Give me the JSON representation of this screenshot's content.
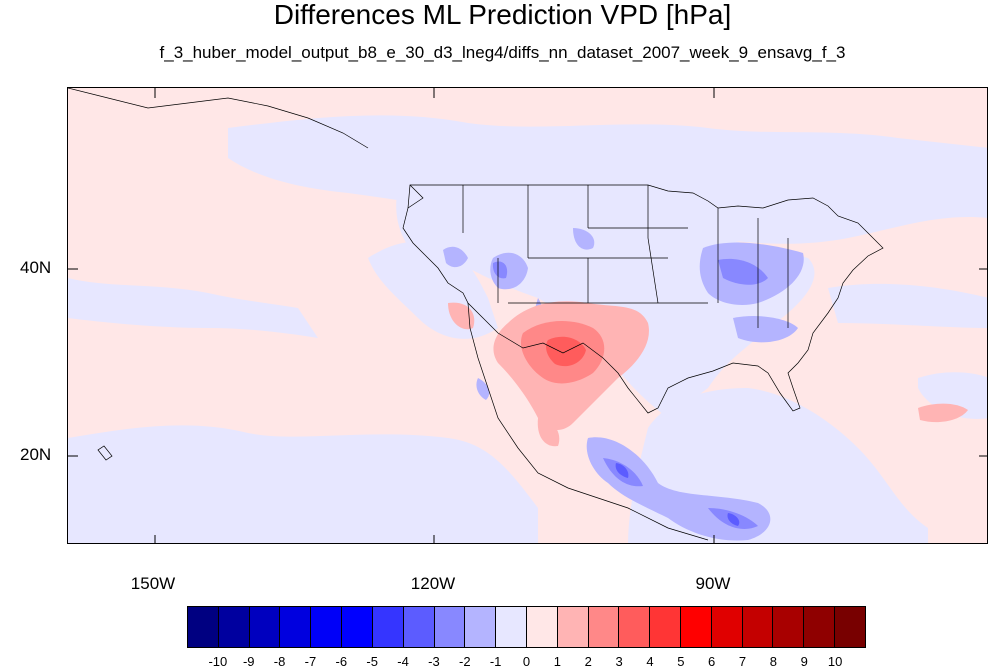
{
  "title": "Differences ML Prediction VPD [hPa]",
  "subtitle": "f_3_huber_model_output_b8_e_30_d3_lneg4/diffs_nn_dataset_2007_week_9_ensavg_f_3",
  "map": {
    "projection": "cylindrical-equidistant",
    "lon_range": [
      -160,
      -62
    ],
    "lat_range": [
      11,
      60
    ],
    "lat_ticks": [
      {
        "value": 40,
        "label": "40N"
      },
      {
        "value": 20,
        "label": "20N"
      }
    ],
    "lon_ticks": [
      {
        "value": -150,
        "label": "150W"
      },
      {
        "value": -120,
        "label": "120W"
      },
      {
        "value": -90,
        "label": "90W"
      }
    ],
    "background_color": "#ffe7e7",
    "features": [
      "coastlines",
      "us-state-borders",
      "country-borders"
    ]
  },
  "colorbar": {
    "labels": [
      "-10",
      "-9",
      "-8",
      "-7",
      "-6",
      "-5",
      "-4",
      "-3",
      "-2",
      "-1",
      "0",
      "1",
      "2",
      "3",
      "4",
      "5",
      "6",
      "7",
      "8",
      "9",
      "10"
    ],
    "colors": [
      "#000081",
      "#00009f",
      "#0000bf",
      "#0000df",
      "#0000f8",
      "#0000ff",
      "#3535ff",
      "#5c5cff",
      "#8888ff",
      "#b4b4ff",
      "#e7e7ff",
      "#ffe7e7",
      "#ffb4b4",
      "#ff8888",
      "#ff5c5c",
      "#ff3535",
      "#ff0000",
      "#e00000",
      "#c40000",
      "#a80000",
      "#8f0000",
      "#780000"
    ]
  }
}
